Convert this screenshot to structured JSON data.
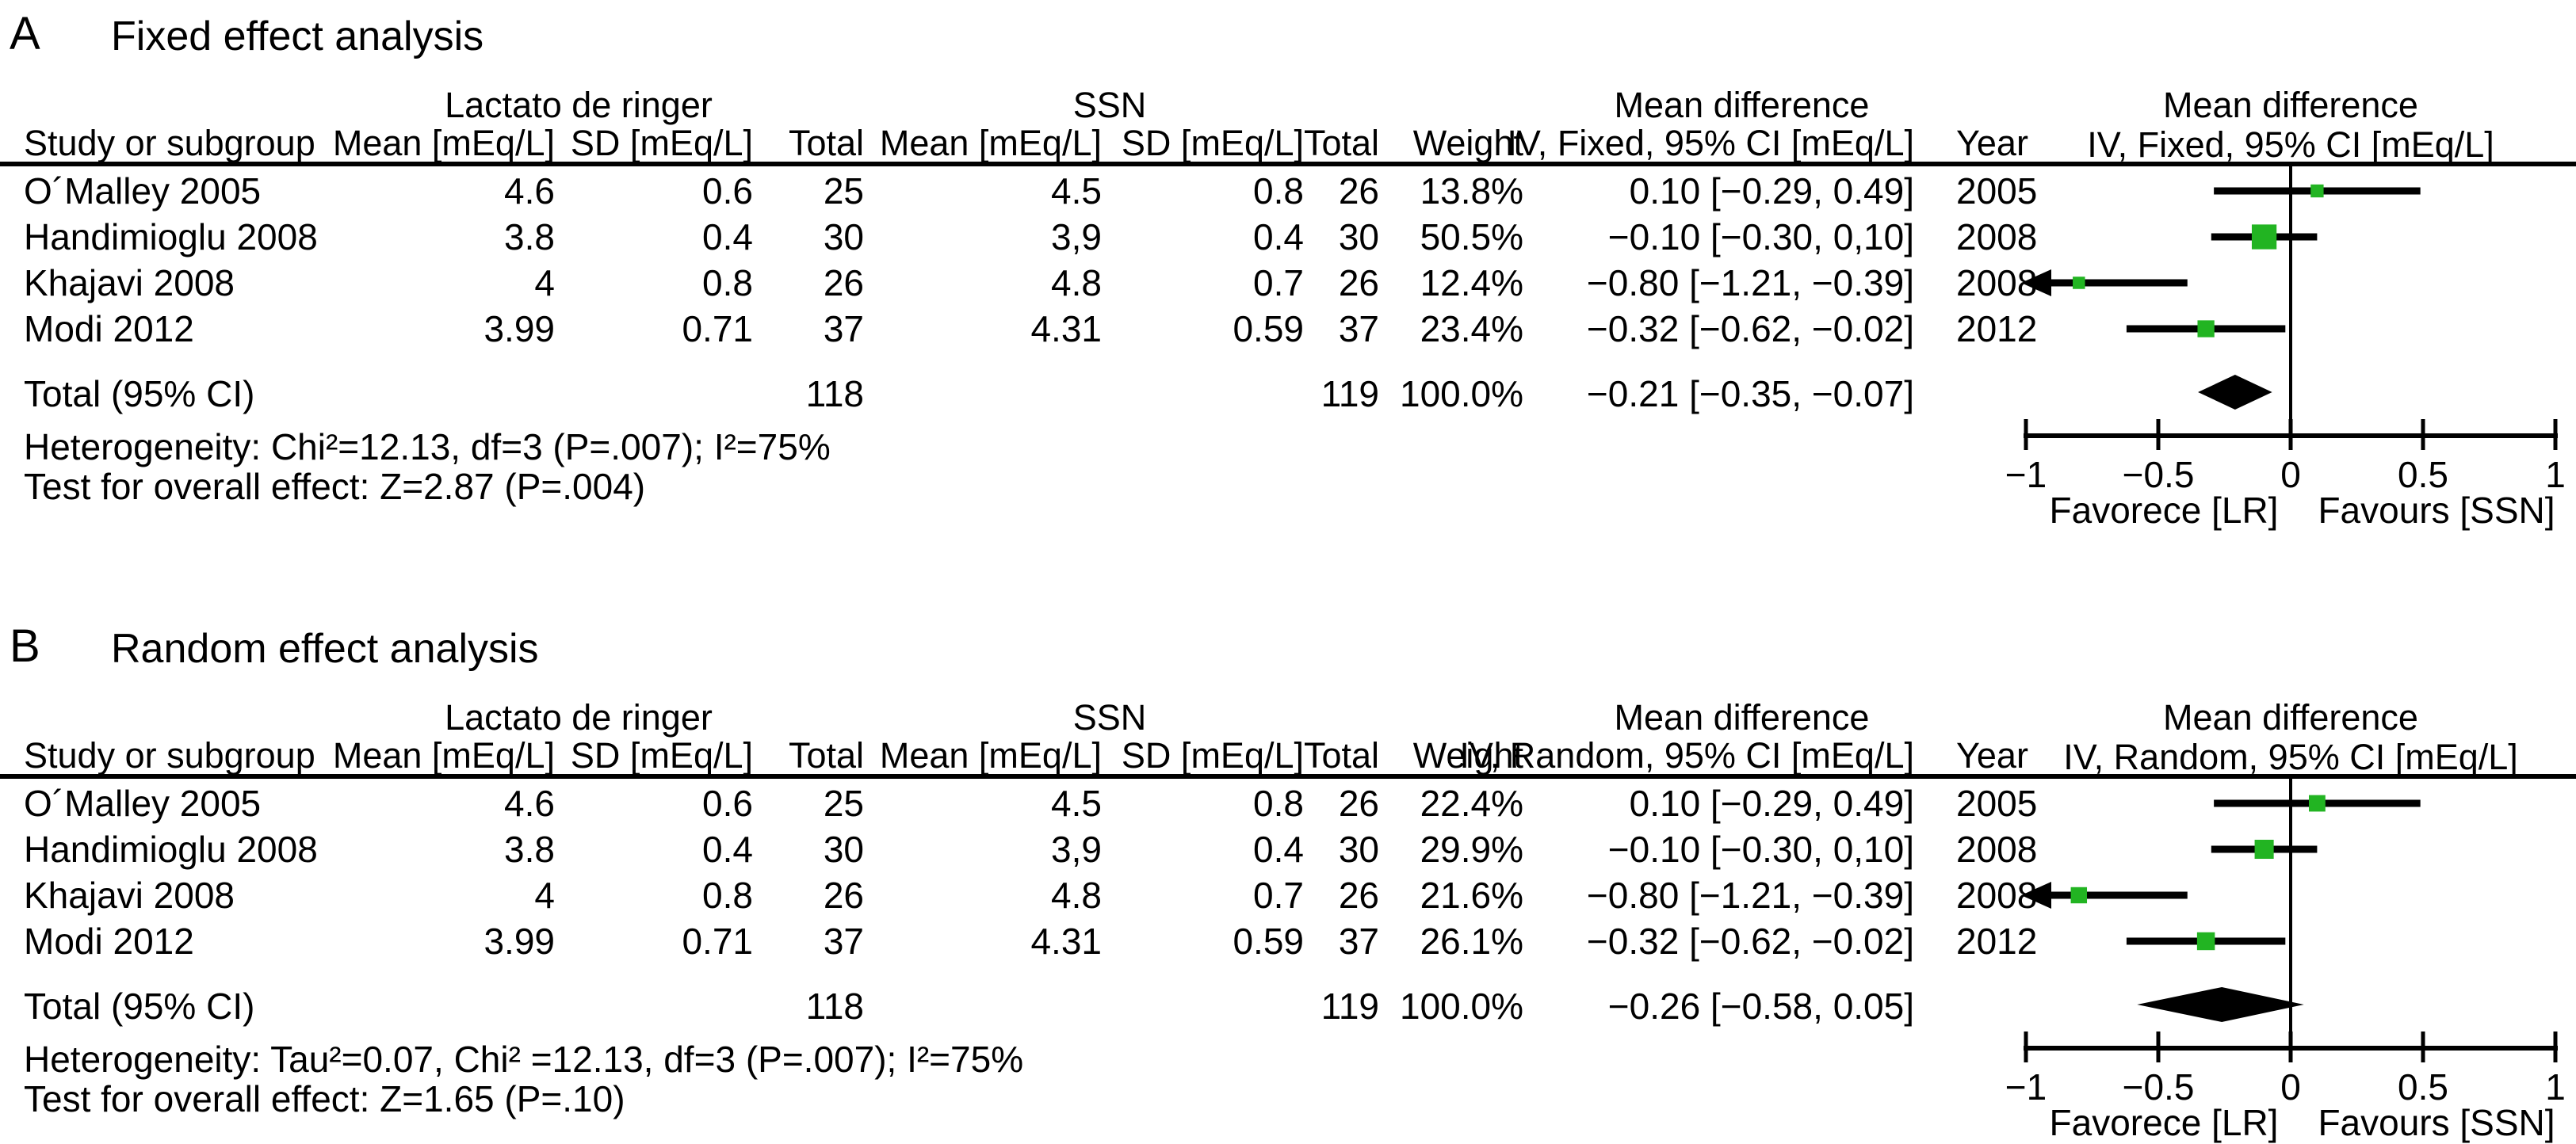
{
  "figure": {
    "panels": [
      {
        "letter": "A",
        "title": "Fixed effect analysis",
        "headers": {
          "study": "Study or subgroup",
          "group1": "Lactato de ringer",
          "group2": "SSN",
          "mean": "Mean [mEq/L]",
          "sd": "SD [mEq/L]",
          "total": "Total",
          "weight": "Weight",
          "md": "Mean difference",
          "ci": "IV, Fixed, 95% CI [mEq/L]",
          "year": "Year"
        },
        "rows": [
          {
            "study": "O´Malley 2005",
            "m1": "4.6",
            "sd1": "0.6",
            "t1": "25",
            "m2": "4.5",
            "sd2": "0.8",
            "t2": "26",
            "weight": "13.8%",
            "ci": "0.10 [−0.29, 0.49]",
            "year": "2005"
          },
          {
            "study": "Handimioglu 2008",
            "m1": "3.8",
            "sd1": "0.4",
            "t1": "30",
            "m2": "3,9",
            "sd2": "0.4",
            "t2": "30",
            "weight": "50.5%",
            "ci": "−0.10 [−0.30, 0,10]",
            "year": "2008"
          },
          {
            "study": "Khajavi 2008",
            "m1": "4",
            "sd1": "0.8",
            "t1": "26",
            "m2": "4.8",
            "sd2": "0.7",
            "t2": "26",
            "weight": "12.4%",
            "ci": "−0.80 [−1.21, −0.39]",
            "year": "2008"
          },
          {
            "study": "Modi 2012",
            "m1": "3.99",
            "sd1": "0.71",
            "t1": "37",
            "m2": "4.31",
            "sd2": "0.59",
            "t2": "37",
            "weight": "23.4%",
            "ci": "−0.32 [−0.62, −0.02]",
            "year": "2012"
          }
        ],
        "total": {
          "label": "Total (95% CI)",
          "t1": "118",
          "t2": "119",
          "weight": "100.0%",
          "ci": "−0.21 [−0.35, −0.07]"
        },
        "heterogeneity": "Heterogeneity: Chi²=12.13, df=3 (P=.007); I²=75%",
        "overall_effect": "Test for overall effect: Z=2.87 (P=.004)"
      },
      {
        "letter": "B",
        "title": "Random effect analysis",
        "headers": {
          "study": "Study or subgroup",
          "group1": "Lactato de ringer",
          "group2": "SSN",
          "mean": "Mean [mEq/L]",
          "sd": "SD [mEq/L]",
          "total": "Total",
          "weight": "Weight",
          "md": "Mean difference",
          "ci": "IV, Random, 95% CI [mEq/L]",
          "year": "Year"
        },
        "rows": [
          {
            "study": "O´Malley 2005",
            "m1": "4.6",
            "sd1": "0.6",
            "t1": "25",
            "m2": "4.5",
            "sd2": "0.8",
            "t2": "26",
            "weight": "22.4%",
            "ci": "0.10 [−0.29, 0.49]",
            "year": "2005"
          },
          {
            "study": "Handimioglu 2008",
            "m1": "3.8",
            "sd1": "0.4",
            "t1": "30",
            "m2": "3,9",
            "sd2": "0.4",
            "t2": "30",
            "weight": "29.9%",
            "ci": "−0.10 [−0.30, 0,10]",
            "year": "2008"
          },
          {
            "study": "Khajavi 2008",
            "m1": "4",
            "sd1": "0.8",
            "t1": "26",
            "m2": "4.8",
            "sd2": "0.7",
            "t2": "26",
            "weight": "21.6%",
            "ci": "−0.80 [−1.21, −0.39]",
            "year": "2008"
          },
          {
            "study": "Modi 2012",
            "m1": "3.99",
            "sd1": "0.71",
            "t1": "37",
            "m2": "4.31",
            "sd2": "0.59",
            "t2": "37",
            "weight": "26.1%",
            "ci": "−0.32 [−0.62, −0.02]",
            "year": "2012"
          }
        ],
        "total": {
          "label": "Total (95% CI)",
          "t1": "118",
          "t2": "119",
          "weight": "100.0%",
          "ci": "−0.26 [−0.58, 0.05]"
        },
        "heterogeneity": "Heterogeneity: Tau²=0.07, Chi² =12.13, df=3 (P=.007); I²=75%",
        "overall_effect": "Test for overall effect: Z=1.65 (P=.10)"
      }
    ]
  },
  "chart_data": [
    {
      "type": "scatter",
      "subtype": "forest_plot",
      "title": "Fixed effect analysis",
      "effect_label": "Mean difference IV, Fixed, 95% CI [mEq/L]",
      "studies": [
        {
          "name": "O´Malley 2005",
          "year": 2005,
          "estimate": 0.1,
          "ci_low": -0.29,
          "ci_high": 0.49,
          "weight_pct": 13.8
        },
        {
          "name": "Handimioglu 2008",
          "year": 2008,
          "estimate": -0.1,
          "ci_low": -0.3,
          "ci_high": 0.1,
          "weight_pct": 50.5
        },
        {
          "name": "Khajavi 2008",
          "year": 2008,
          "estimate": -0.8,
          "ci_low": -1.21,
          "ci_high": -0.39,
          "weight_pct": 12.4
        },
        {
          "name": "Modi 2012",
          "year": 2012,
          "estimate": -0.32,
          "ci_low": -0.62,
          "ci_high": -0.02,
          "weight_pct": 23.4
        }
      ],
      "total": {
        "estimate": -0.21,
        "ci_low": -0.35,
        "ci_high": -0.07,
        "weight_pct": 100.0
      },
      "xlim": [
        -1,
        1
      ],
      "ticks": [
        -1,
        -0.5,
        0,
        0.5,
        1
      ],
      "tick_labels": [
        "−1",
        "−0.5",
        "0",
        "0.5",
        "1"
      ],
      "x_left_label": "Favorece [LR]",
      "x_right_label": "Favours [SSN]",
      "marker_color": "#22b422",
      "line_color": "#000000"
    },
    {
      "type": "scatter",
      "subtype": "forest_plot",
      "title": "Random effect analysis",
      "effect_label": "Mean difference IV, Random, 95% CI [mEq/L]",
      "studies": [
        {
          "name": "O´Malley 2005",
          "year": 2005,
          "estimate": 0.1,
          "ci_low": -0.29,
          "ci_high": 0.49,
          "weight_pct": 22.4
        },
        {
          "name": "Handimioglu 2008",
          "year": 2008,
          "estimate": -0.1,
          "ci_low": -0.3,
          "ci_high": 0.1,
          "weight_pct": 29.9
        },
        {
          "name": "Khajavi 2008",
          "year": 2008,
          "estimate": -0.8,
          "ci_low": -1.21,
          "ci_high": -0.39,
          "weight_pct": 21.6
        },
        {
          "name": "Modi 2012",
          "year": 2012,
          "estimate": -0.32,
          "ci_low": -0.62,
          "ci_high": -0.02,
          "weight_pct": 26.1
        }
      ],
      "total": {
        "estimate": -0.26,
        "ci_low": -0.58,
        "ci_high": 0.05,
        "weight_pct": 100.0
      },
      "xlim": [
        -1,
        1
      ],
      "ticks": [
        -1,
        -0.5,
        0,
        0.5,
        1
      ],
      "tick_labels": [
        "−1",
        "−0.5",
        "0",
        "0.5",
        "1"
      ],
      "x_left_label": "Favorece [LR]",
      "x_right_label": "Favours [SSN]",
      "marker_color": "#22b422",
      "line_color": "#000000"
    }
  ]
}
